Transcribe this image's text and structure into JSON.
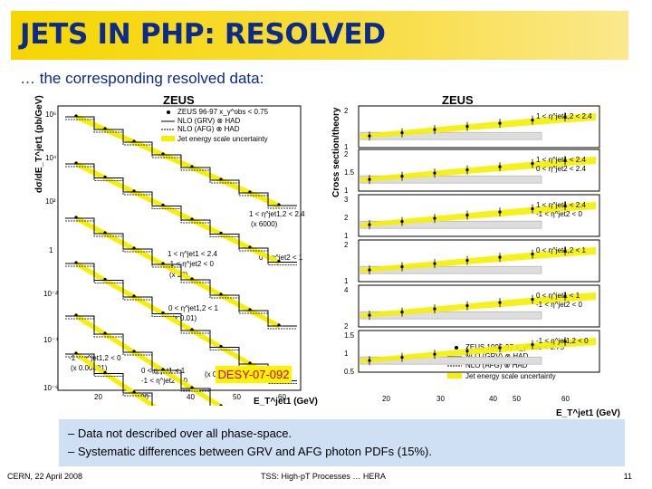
{
  "slide": {
    "title": "JETS IN PHP: RESOLVED",
    "subtitle": "… the corresponding resolved data:",
    "desy_label": "DESY-07-092",
    "bullets": [
      "– Data not described over all phase-space.",
      "– Systematic differences between GRV and AFG photon PDFs (15%)."
    ],
    "footer": {
      "left": "CERN, 22 April 2008",
      "center": "TSS: High-pT Processes … HERA",
      "right": "11"
    }
  },
  "left_figure": {
    "title": "ZEUS",
    "ylabel": "dσ/dE_T^jet1 (pb/GeV)",
    "xlabel": "E_T^jet1 (GeV)",
    "x_ticks": [
      "20",
      "30",
      "40",
      "50",
      "60"
    ],
    "y_ticks": [
      "10⁶",
      "10⁴",
      "10²",
      "1",
      "10⁻²",
      "10⁻⁴",
      "10⁻⁶"
    ],
    "legend": [
      "ZEUS 96-97   x_γ^obs < 0.75",
      "NLO (GRV) ⊗ HAD",
      "NLO (AFG) ⊗ HAD",
      "Jet energy scale uncertainty"
    ],
    "annotations": [
      "1 < η^jet1,2 < 2.4",
      "(x 6000)",
      "1 < η^jet1 < 2.4",
      "-1 < η^jet2 < 0",
      "0 < η^jet2 < 1",
      "(x 20)",
      "0 < η^jet1,2 < 1",
      "(x 0.01)",
      "-1 < η^jet1,2 < 0",
      "(x 0.00001)",
      "0 < η^jet1 < 1",
      "-1 < η^jet2 < 0",
      "(x 0.0001)"
    ]
  },
  "right_figure": {
    "title": "ZEUS",
    "ylabel": "Cross section/theory",
    "xlabel": "E_T^jet1 (GeV)",
    "x_ticks": [
      "20",
      "30",
      "40",
      "50",
      "60"
    ],
    "legend": [
      "ZEUS 1996-97   x_γ^obs < 0.75",
      "NLO (GRV) ⊗ HAD",
      "NLO (AFG) ⊗ HAD",
      "Jet energy scale uncertainty"
    ],
    "panels": [
      {
        "region": [
          "1 < η^jet1,2 < 2.4"
        ],
        "y_ticks": [
          "2",
          "1"
        ]
      },
      {
        "region": [
          "1 < η^jet1 < 2.4",
          "0 < η^jet2 < 2.4"
        ],
        "y_ticks": [
          "2",
          "1.5",
          "1"
        ]
      },
      {
        "region": [
          "1 < η^jet1 < 2.4",
          "-1 < η^jet2 < 0"
        ],
        "y_ticks": [
          "3",
          "2",
          "1"
        ]
      },
      {
        "region": [
          "0 < η^jet1,2 < 1"
        ],
        "y_ticks": [
          "2",
          "1"
        ]
      },
      {
        "region": [
          "0 < η^jet1 < 1",
          "-1 < η^jet2 < 0"
        ],
        "y_ticks": [
          "4",
          "2"
        ]
      },
      {
        "region": [
          "-1 < η^jet1,2 < 0"
        ],
        "y_ticks": [
          "1.5",
          "1",
          "0.5"
        ]
      }
    ]
  },
  "colors": {
    "title_text": "#0a2a8c",
    "title_bar": "#f6d600",
    "band": "#f4f000",
    "box": "#cfe0f4",
    "desy_text": "#cc0000"
  }
}
